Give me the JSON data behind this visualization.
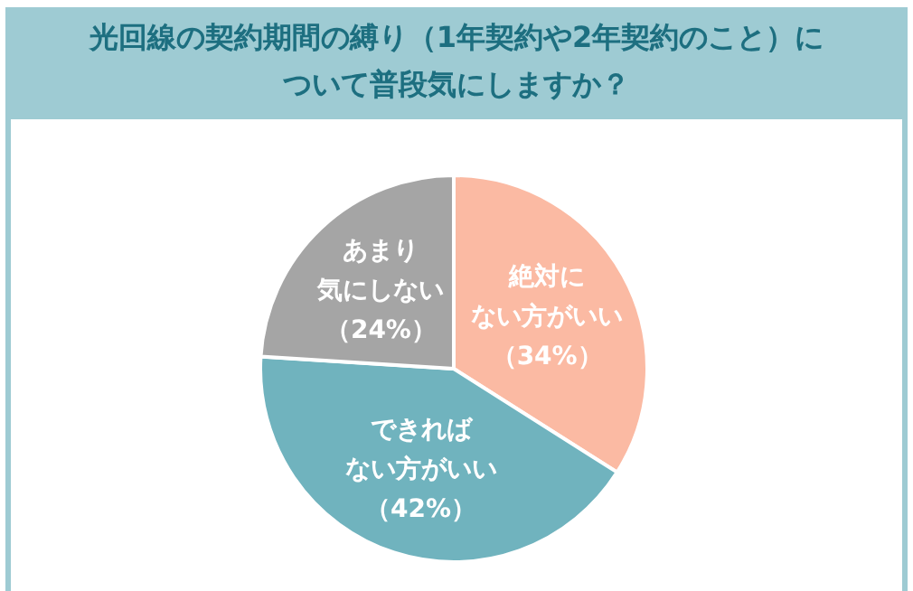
{
  "chart_data": {
    "type": "pie",
    "title": "光回線の契約期間の縛り（1年契約や2年契約のこと）について普段気にしますか？",
    "categories": [
      "絶対にない方がいい",
      "できればない方がいい",
      "あまり気にしない"
    ],
    "values": [
      34,
      42,
      24
    ],
    "colors": [
      "#fbbaa3",
      "#70b3be",
      "#a5a5a5"
    ],
    "value_labels": [
      "（34%）",
      "（42%）",
      "（24%）"
    ]
  }
}
